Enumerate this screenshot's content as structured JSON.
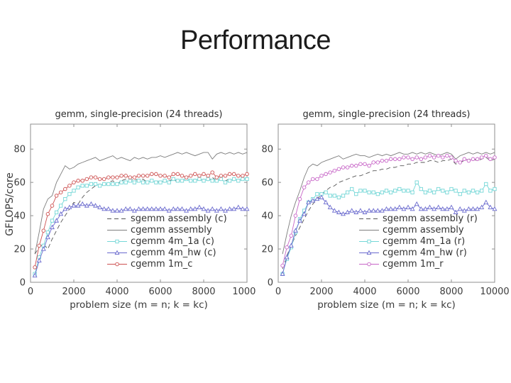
{
  "title": "Performance",
  "chart_data": [
    {
      "type": "line",
      "title": "gemm, single-precision (24 threads)",
      "ylabel": "GFLOPS/core",
      "xlabel": "problem size (m = n; k = kc)",
      "xlim": [
        0,
        10000
      ],
      "ylim": [
        0,
        95
      ],
      "xticks": [
        0,
        2000,
        4000,
        6000,
        8000,
        10000
      ],
      "yticks": [
        0,
        20,
        40,
        60,
        80
      ],
      "grid": false,
      "legend_position": "lower right",
      "x": [
        200,
        400,
        600,
        800,
        1000,
        1200,
        1400,
        1600,
        1800,
        2000,
        2200,
        2400,
        2600,
        2800,
        3000,
        3200,
        3400,
        3600,
        3800,
        4000,
        4200,
        4400,
        4600,
        4800,
        5000,
        5200,
        5400,
        5600,
        5800,
        6000,
        6200,
        6400,
        6600,
        6800,
        7000,
        7200,
        7400,
        7600,
        7800,
        8000,
        8200,
        8400,
        8600,
        8800,
        9000,
        9200,
        9400,
        9600,
        9800,
        10000
      ],
      "series": [
        {
          "name": "sgemm assembly (c)",
          "color": "#565656",
          "line": "dashed",
          "marker": "none",
          "values": [
            17,
            21,
            23,
            20,
            26,
            31,
            36,
            40,
            44,
            48,
            47,
            51,
            54,
            56,
            58,
            59,
            58,
            60,
            61,
            59,
            61,
            62,
            61,
            62,
            61,
            62,
            60,
            61,
            60,
            61,
            60,
            61,
            62,
            60,
            61,
            62,
            61,
            62,
            61,
            62,
            61,
            63,
            61,
            62,
            61,
            62,
            61,
            62,
            61,
            63
          ]
        },
        {
          "name": "cgemm assembly",
          "color": "#7d7d7d",
          "line": "solid",
          "marker": "none",
          "values": [
            17,
            30,
            44,
            50,
            52,
            60,
            65,
            70,
            68,
            69,
            71,
            72,
            73,
            74,
            75,
            73,
            74,
            75,
            76,
            74,
            75,
            74,
            73,
            75,
            74,
            75,
            74,
            75,
            75,
            76,
            75,
            76,
            77,
            78,
            77,
            78,
            77,
            76,
            77,
            78,
            78,
            74,
            77,
            78,
            77,
            78,
            77,
            78,
            77,
            78
          ]
        },
        {
          "name": "cgemm 4m_1a (c)",
          "color": "#74d7d7",
          "line": "solid",
          "marker": "square",
          "values": [
            5,
            15,
            22,
            30,
            37,
            42,
            46,
            50,
            53,
            55,
            57,
            58,
            58,
            59,
            59,
            58,
            59,
            59,
            59,
            59,
            60,
            60,
            61,
            60,
            61,
            60,
            60,
            61,
            60,
            60,
            61,
            60,
            62,
            61,
            61,
            62,
            61,
            61,
            62,
            61,
            62,
            61,
            61,
            62,
            60,
            61,
            62,
            61,
            62,
            62
          ]
        },
        {
          "name": "cgemm 4m_hw (c)",
          "color": "#6a6ace",
          "line": "solid",
          "marker": "triangle",
          "values": [
            4,
            13,
            20,
            27,
            33,
            37,
            41,
            44,
            45,
            46,
            46,
            47,
            46,
            47,
            46,
            45,
            44,
            44,
            43,
            43,
            43,
            44,
            44,
            43,
            44,
            44,
            44,
            44,
            44,
            44,
            44,
            43,
            44,
            44,
            44,
            43,
            44,
            44,
            45,
            44,
            43,
            44,
            43,
            44,
            43,
            44,
            44,
            45,
            44,
            44
          ]
        },
        {
          "name": "cgemm 1m_c",
          "color": "#cd5151",
          "line": "solid",
          "marker": "circle",
          "values": [
            9,
            22,
            31,
            41,
            46,
            52,
            54,
            56,
            58,
            60,
            61,
            61,
            62,
            63,
            63,
            62,
            62,
            63,
            63,
            63,
            64,
            64,
            63,
            63,
            64,
            64,
            64,
            65,
            65,
            64,
            64,
            63,
            65,
            65,
            64,
            63,
            64,
            65,
            64,
            65,
            64,
            66,
            63,
            64,
            64,
            65,
            65,
            64,
            64,
            65
          ]
        }
      ]
    },
    {
      "type": "line",
      "title": "gemm, single-precision (24 threads)",
      "ylabel": "",
      "xlabel": "problem size (m = n; k = kc)",
      "xlim": [
        0,
        10000
      ],
      "ylim": [
        0,
        95
      ],
      "xticks": [
        0,
        2000,
        4000,
        6000,
        8000,
        10000
      ],
      "yticks": [
        0,
        20,
        40,
        60,
        80
      ],
      "grid": false,
      "legend_position": "lower right",
      "x": [
        200,
        400,
        600,
        800,
        1000,
        1200,
        1400,
        1600,
        1800,
        2000,
        2200,
        2400,
        2600,
        2800,
        3000,
        3200,
        3400,
        3600,
        3800,
        4000,
        4200,
        4400,
        4600,
        4800,
        5000,
        5200,
        5400,
        5600,
        5800,
        6000,
        6200,
        6400,
        6600,
        6800,
        7000,
        7200,
        7400,
        7600,
        7800,
        8000,
        8200,
        8400,
        8600,
        8800,
        9000,
        9200,
        9400,
        9600,
        9800,
        10000
      ],
      "series": [
        {
          "name": "sgemm assembly (r)",
          "color": "#565656",
          "line": "dashed",
          "marker": "none",
          "values": [
            8,
            16,
            22,
            28,
            33,
            38,
            43,
            47,
            50,
            53,
            55,
            57,
            58,
            60,
            61,
            62,
            63,
            64,
            64,
            65,
            66,
            67,
            67,
            68,
            68,
            69,
            69,
            70,
            70,
            71,
            71,
            72,
            72,
            72,
            73,
            73,
            72,
            73,
            73,
            74,
            71,
            72,
            73,
            74,
            74,
            73,
            74,
            75,
            73,
            74
          ]
        },
        {
          "name": "cgemm assembly",
          "color": "#7d7d7d",
          "line": "solid",
          "marker": "none",
          "values": [
            17,
            29,
            40,
            48,
            55,
            63,
            69,
            71,
            70,
            72,
            73,
            74,
            75,
            76,
            74,
            75,
            76,
            77,
            76,
            76,
            75,
            76,
            77,
            76,
            77,
            76,
            77,
            78,
            77,
            77,
            78,
            77,
            78,
            77,
            78,
            77,
            76,
            77,
            78,
            77,
            74,
            76,
            77,
            78,
            77,
            78,
            77,
            78,
            77,
            78
          ]
        },
        {
          "name": "cgemm 4m_1a (r)",
          "color": "#74d7d7",
          "line": "solid",
          "marker": "square",
          "values": [
            5,
            14,
            21,
            30,
            38,
            43,
            48,
            50,
            53,
            53,
            54,
            52,
            52,
            51,
            52,
            54,
            56,
            53,
            55,
            55,
            54,
            54,
            53,
            54,
            55,
            54,
            55,
            56,
            55,
            55,
            54,
            60,
            56,
            54,
            55,
            54,
            56,
            55,
            54,
            56,
            55,
            53,
            55,
            54,
            55,
            54,
            55,
            59,
            55,
            56
          ]
        },
        {
          "name": "cgemm 4m_hw (r)",
          "color": "#6a6ace",
          "line": "solid",
          "marker": "triangle",
          "values": [
            5,
            15,
            22,
            31,
            37,
            41,
            48,
            49,
            50,
            51,
            48,
            45,
            43,
            42,
            41,
            42,
            43,
            42,
            43,
            42,
            43,
            43,
            43,
            43,
            44,
            44,
            44,
            45,
            44,
            45,
            44,
            47,
            44,
            44,
            45,
            44,
            45,
            44,
            44,
            45,
            42,
            44,
            43,
            44,
            44,
            44,
            45,
            48,
            45,
            44
          ]
        },
        {
          "name": "cgemm 1m_r",
          "color": "#c765c7",
          "line": "solid",
          "marker": "circle",
          "values": [
            10,
            21,
            28,
            40,
            50,
            57,
            60,
            62,
            62,
            64,
            65,
            66,
            67,
            68,
            69,
            69,
            70,
            70,
            71,
            71,
            70,
            72,
            72,
            73,
            73,
            74,
            74,
            74,
            75,
            75,
            74,
            75,
            74,
            75,
            76,
            75,
            76,
            75,
            76,
            75,
            73,
            72,
            74,
            73,
            74,
            74,
            75,
            76,
            74,
            75
          ]
        }
      ]
    }
  ]
}
